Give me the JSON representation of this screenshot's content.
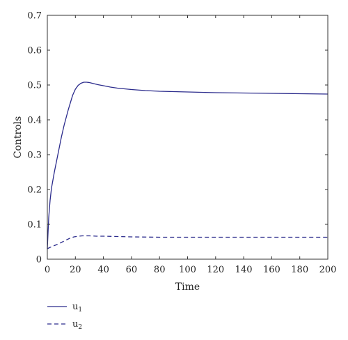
{
  "chart_data": {
    "type": "line",
    "title": "",
    "xlabel": "Time",
    "ylabel": "Controls",
    "xlim": [
      0,
      200
    ],
    "ylim": [
      0,
      0.7
    ],
    "xticks": [
      0,
      20,
      40,
      60,
      80,
      100,
      120,
      140,
      160,
      180,
      200
    ],
    "yticks": [
      0,
      0.1,
      0.2,
      0.3,
      0.4,
      0.5,
      0.6,
      0.7
    ],
    "xtick_labels": [
      "0",
      "20",
      "40",
      "60",
      "80",
      "100",
      "120",
      "140",
      "160",
      "180",
      "200"
    ],
    "ytick_labels": [
      "0",
      "0.1",
      "0.2",
      "0.3",
      "0.4",
      "0.5",
      "0.6",
      "0.7"
    ],
    "grid": false,
    "legend_position": "bottom-left, below plot",
    "series": [
      {
        "name": "u1",
        "legend_base": "u",
        "legend_sub": "1",
        "style": "solid",
        "color": "#2b2b8c",
        "x": [
          0,
          1,
          2,
          3,
          5,
          7,
          10,
          12,
          15,
          18,
          20,
          22,
          24,
          26,
          28,
          30,
          33,
          36,
          40,
          45,
          50,
          60,
          70,
          80,
          90,
          100,
          120,
          140,
          160,
          180,
          200
        ],
        "y": [
          0.03,
          0.12,
          0.17,
          0.205,
          0.25,
          0.29,
          0.35,
          0.385,
          0.43,
          0.47,
          0.488,
          0.499,
          0.505,
          0.508,
          0.508,
          0.507,
          0.504,
          0.501,
          0.498,
          0.494,
          0.491,
          0.487,
          0.484,
          0.482,
          0.481,
          0.48,
          0.478,
          0.477,
          0.476,
          0.475,
          0.474
        ]
      },
      {
        "name": "u2",
        "legend_base": "u",
        "legend_sub": "2",
        "style": "dashed",
        "color": "#2b2b8c",
        "x": [
          0,
          2,
          5,
          8,
          10,
          13,
          16,
          19,
          22,
          25,
          28,
          30,
          35,
          40,
          50,
          60,
          80,
          100,
          120,
          140,
          160,
          180,
          200
        ],
        "y": [
          0.03,
          0.034,
          0.039,
          0.044,
          0.048,
          0.054,
          0.06,
          0.064,
          0.066,
          0.067,
          0.067,
          0.067,
          0.066,
          0.066,
          0.065,
          0.064,
          0.063,
          0.063,
          0.063,
          0.063,
          0.063,
          0.063,
          0.063
        ]
      }
    ]
  }
}
